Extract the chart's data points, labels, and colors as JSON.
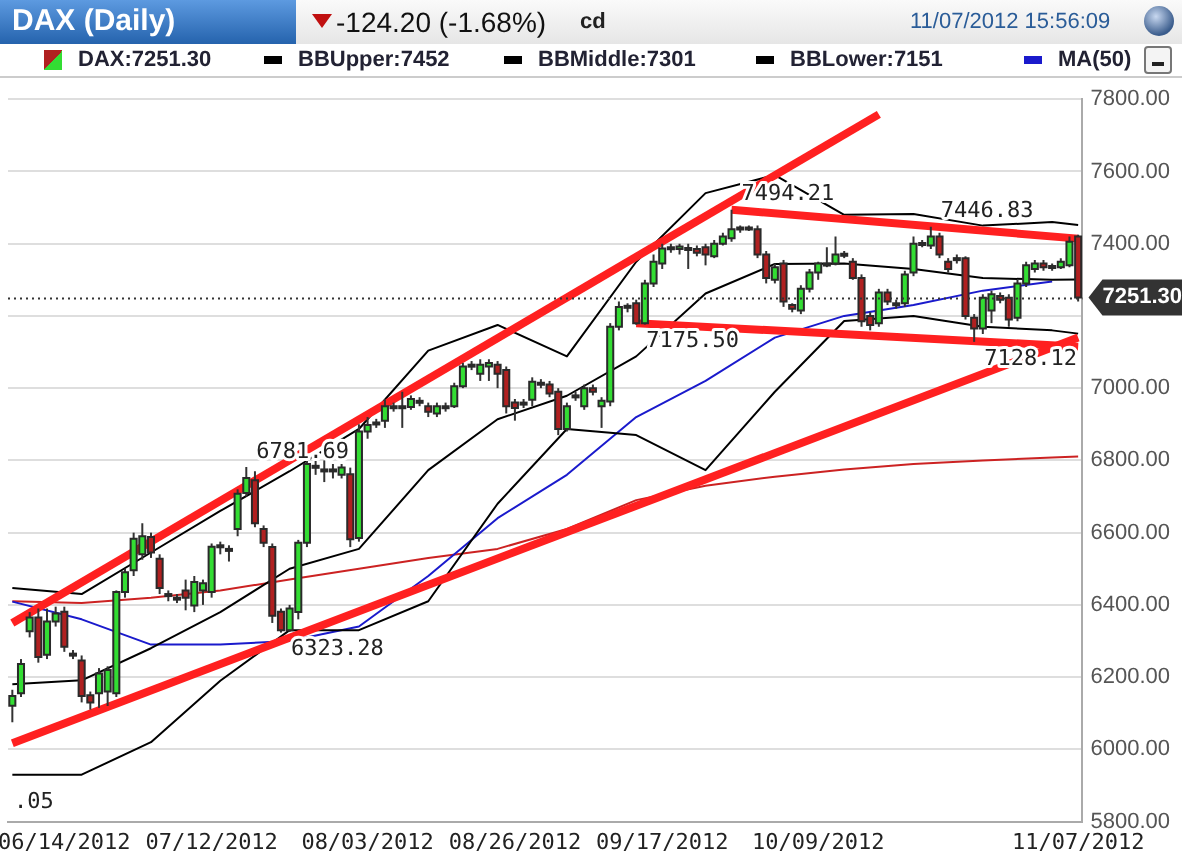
{
  "chart_data": {
    "type": "candlestick",
    "title": "DAX (Daily)",
    "subtitle": "-124.20 (-1.68%)",
    "annotations": [
      "cd",
      "11/07/2012 15:56:09",
      ".05",
      {
        "text": "7494.21",
        "y": 7494.21
      },
      {
        "text": "7446.83",
        "y": 7446.83
      },
      {
        "text": "7175.50",
        "y": 7175.5
      },
      {
        "text": "7128.12",
        "y": 7128.12
      },
      {
        "text": "6781.69",
        "y": 6781.69
      },
      {
        "text": "6323.28",
        "y": 6323.28
      }
    ],
    "categories": [
      null,
      null,
      null,
      null,
      null,
      null,
      "06/14/2012",
      null,
      null,
      null,
      null,
      null,
      null,
      null,
      null,
      null,
      null,
      null,
      null,
      null,
      null,
      null,
      null,
      "07/12/2012",
      null,
      null,
      null,
      null,
      null,
      null,
      null,
      null,
      null,
      null,
      null,
      null,
      null,
      null,
      null,
      null,
      null,
      "08/03/2012",
      null,
      null,
      null,
      null,
      null,
      null,
      null,
      null,
      null,
      null,
      null,
      null,
      null,
      null,
      null,
      null,
      "08/26/2012",
      null,
      null,
      null,
      null,
      null,
      null,
      null,
      null,
      null,
      null,
      null,
      null,
      null,
      null,
      null,
      null,
      "09/17/2012",
      null,
      null,
      null,
      null,
      null,
      null,
      null,
      null,
      null,
      null,
      null,
      null,
      null,
      null,
      null,
      null,
      null,
      "10/09/2012",
      null,
      null,
      null,
      null,
      null,
      null,
      null,
      null,
      null,
      null,
      null,
      null,
      null,
      null,
      null,
      null,
      null,
      null,
      null,
      null,
      null,
      null,
      null,
      null,
      null,
      null,
      null,
      null,
      null,
      "11/07/2012"
    ],
    "series": [
      {
        "name": "DAX:7251.30",
        "type": "candlestick",
        "ohlc": [
          [
            6121,
            6165,
            6075,
            6148
          ],
          [
            6155,
            6250,
            6145,
            6236
          ],
          [
            6327,
            6380,
            6310,
            6365
          ],
          [
            6365,
            6390,
            6240,
            6256
          ],
          [
            6262,
            6390,
            6250,
            6354
          ],
          [
            6354,
            6395,
            6340,
            6376
          ],
          [
            6381,
            6395,
            6270,
            6284
          ],
          [
            6265,
            6275,
            6250,
            6260
          ],
          [
            6246,
            6260,
            6130,
            6148
          ],
          [
            6150,
            6160,
            6110,
            6130
          ],
          [
            6155,
            6225,
            6115,
            6210
          ],
          [
            6160,
            6230,
            6120,
            6220
          ],
          [
            6155,
            6440,
            6145,
            6436
          ],
          [
            6436,
            6500,
            6420,
            6490
          ],
          [
            6496,
            6600,
            6480,
            6583
          ],
          [
            6540,
            6626,
            6525,
            6590
          ],
          [
            6588,
            6600,
            6530,
            6545
          ],
          [
            6528,
            6540,
            6430,
            6447
          ],
          [
            6430,
            6440,
            6410,
            6425
          ],
          [
            6415,
            6430,
            6405,
            6420
          ],
          [
            6440,
            6470,
            6385,
            6420
          ],
          [
            6398,
            6480,
            6380,
            6463
          ],
          [
            6440,
            6470,
            6400,
            6460
          ],
          [
            6436,
            6570,
            6420,
            6561
          ],
          [
            6565,
            6575,
            6540,
            6562
          ],
          [
            6555,
            6565,
            6520,
            6550
          ],
          [
            6610,
            6720,
            6590,
            6708
          ],
          [
            6710,
            6781.69,
            6700,
            6751
          ],
          [
            6745,
            6770,
            6615,
            6626
          ],
          [
            6610,
            6620,
            6560,
            6572
          ],
          [
            6560,
            6570,
            6350,
            6370
          ],
          [
            6381,
            6390,
            6323.28,
            6330
          ],
          [
            6330,
            6400,
            6325,
            6390
          ],
          [
            6380,
            6580,
            6360,
            6572
          ],
          [
            6572,
            6800,
            6560,
            6790
          ],
          [
            6785,
            6800,
            6760,
            6780
          ],
          [
            6770,
            6800,
            6740,
            6775
          ],
          [
            6775,
            6790,
            6750,
            6770
          ],
          [
            6760,
            6790,
            6750,
            6780
          ],
          [
            6762,
            6780,
            6560,
            6582
          ],
          [
            6585,
            6900,
            6575,
            6880
          ],
          [
            6880,
            6920,
            6860,
            6898
          ],
          [
            6900,
            6915,
            6890,
            6905
          ],
          [
            6910,
            6970,
            6890,
            6950
          ],
          [
            6950,
            6960,
            6935,
            6948
          ],
          [
            6945,
            6990,
            6890,
            6950
          ],
          [
            6948,
            6980,
            6940,
            6970
          ],
          [
            6965,
            6975,
            6950,
            6960
          ],
          [
            6950,
            6960,
            6920,
            6935
          ],
          [
            6930,
            6960,
            6920,
            6950
          ],
          [
            6950,
            6960,
            6935,
            6945
          ],
          [
            6950,
            7015,
            6945,
            7005
          ],
          [
            7005,
            7070,
            7000,
            7060
          ],
          [
            7060,
            7075,
            7050,
            7065
          ],
          [
            7040,
            7080,
            7020,
            7065
          ],
          [
            7060,
            7080,
            7020,
            7070
          ],
          [
            7065,
            7075,
            7000,
            7040
          ],
          [
            7050,
            7060,
            6930,
            6950
          ],
          [
            6960,
            6970,
            6910,
            6945
          ],
          [
            6955,
            6970,
            6945,
            6960
          ],
          [
            6968,
            7030,
            6950,
            7018
          ],
          [
            7015,
            7025,
            7000,
            7010
          ],
          [
            7010,
            7020,
            6975,
            6985
          ],
          [
            6990,
            7000,
            6870,
            6887
          ],
          [
            6887,
            6960,
            6880,
            6950
          ],
          [
            6975,
            6990,
            6965,
            6980
          ],
          [
            6950,
            7010,
            6940,
            7000
          ],
          [
            7000,
            7010,
            6980,
            6990
          ],
          [
            6950,
            6975,
            6890,
            6965
          ],
          [
            6963,
            7180,
            6950,
            7170
          ],
          [
            7170,
            7240,
            7160,
            7225
          ],
          [
            7225,
            7235,
            7210,
            7228
          ],
          [
            7235,
            7245,
            7175.5,
            7180
          ],
          [
            7180,
            7300,
            7176,
            7290
          ],
          [
            7290,
            7370,
            7280,
            7350
          ],
          [
            7345,
            7400,
            7330,
            7387
          ],
          [
            7390,
            7400,
            7375,
            7385
          ],
          [
            7385,
            7400,
            7370,
            7392
          ],
          [
            7388,
            7400,
            7330,
            7385
          ],
          [
            7385,
            7395,
            7365,
            7375
          ],
          [
            7390,
            7400,
            7340,
            7370
          ],
          [
            7365,
            7410,
            7360,
            7400
          ],
          [
            7400,
            7430,
            7395,
            7420
          ],
          [
            7415,
            7494.21,
            7405,
            7440
          ],
          [
            7440,
            7450,
            7430,
            7445
          ],
          [
            7445,
            7450,
            7435,
            7443
          ],
          [
            7440,
            7450,
            7360,
            7370
          ],
          [
            7370,
            7380,
            7290,
            7305
          ],
          [
            7300,
            7345,
            7290,
            7335
          ],
          [
            7345,
            7355,
            7225,
            7240
          ],
          [
            7230,
            7235,
            7210,
            7220
          ],
          [
            7215,
            7285,
            7205,
            7275
          ],
          [
            7275,
            7330,
            7265,
            7320
          ],
          [
            7320,
            7350,
            7300,
            7345
          ],
          [
            7345,
            7390,
            7335,
            7342
          ],
          [
            7345,
            7420,
            7340,
            7370
          ],
          [
            7370,
            7380,
            7360,
            7372
          ],
          [
            7350,
            7360,
            7300,
            7305
          ],
          [
            7305,
            7315,
            7170,
            7185
          ],
          [
            7200,
            7210,
            7160,
            7175
          ],
          [
            7180,
            7275,
            7170,
            7265
          ],
          [
            7265,
            7275,
            7230,
            7240
          ],
          [
            7235,
            7245,
            7220,
            7230
          ],
          [
            7235,
            7325,
            7225,
            7315
          ],
          [
            7320,
            7420,
            7310,
            7400
          ],
          [
            7400,
            7410,
            7390,
            7402
          ],
          [
            7395,
            7446.83,
            7385,
            7420
          ],
          [
            7420,
            7430,
            7360,
            7370
          ],
          [
            7350,
            7360,
            7320,
            7330
          ],
          [
            7355,
            7370,
            7345,
            7360
          ],
          [
            7360,
            7365,
            7190,
            7200
          ],
          [
            7195,
            7205,
            7128.12,
            7165
          ],
          [
            7165,
            7260,
            7150,
            7250
          ],
          [
            7215,
            7270,
            7180,
            7260
          ],
          [
            7255,
            7265,
            7235,
            7245
          ],
          [
            7250,
            7260,
            7170,
            7190
          ],
          [
            7195,
            7300,
            7185,
            7290
          ],
          [
            7290,
            7350,
            7280,
            7340
          ],
          [
            7330,
            7355,
            7320,
            7345
          ],
          [
            7345,
            7355,
            7325,
            7335
          ],
          [
            7335,
            7345,
            7325,
            7338
          ],
          [
            7335,
            7360,
            7330,
            7350
          ],
          [
            7340,
            7420,
            7335,
            7405
          ],
          [
            7420,
            7425,
            7240,
            7251.3
          ]
        ],
        "colors": [
          "#33dd33",
          "#33dd33",
          "#33dd33",
          "#b02020",
          "#33dd33",
          "#33dd33",
          "#b02020",
          "#b02020",
          "#b02020",
          "#b02020",
          "#33dd33",
          "#33dd33",
          "#33dd33",
          "#33dd33",
          "#33dd33",
          "#33dd33",
          "#b02020",
          "#b02020",
          "#b02020",
          "#33dd33",
          "#b02020",
          "#33dd33",
          "#33dd33",
          "#33dd33",
          "#b02020",
          "#b02020",
          "#33dd33",
          "#33dd33",
          "#b02020",
          "#b02020",
          "#b02020",
          "#b02020",
          "#33dd33",
          "#33dd33",
          "#33dd33",
          "#b02020",
          "#33dd33",
          "#b02020",
          "#33dd33",
          "#b02020",
          "#33dd33",
          "#33dd33",
          "#33dd33",
          "#33dd33",
          "#b02020",
          "#33dd33",
          "#33dd33",
          "#b02020",
          "#b02020",
          "#33dd33",
          "#b02020",
          "#33dd33",
          "#33dd33",
          "#33dd33",
          "#33dd33",
          "#33dd33",
          "#b02020",
          "#b02020",
          "#b02020",
          "#33dd33",
          "#33dd33",
          "#b02020",
          "#b02020",
          "#b02020",
          "#33dd33",
          "#33dd33",
          "#33dd33",
          "#b02020",
          "#33dd33",
          "#33dd33",
          "#33dd33",
          "#33dd33",
          "#b02020",
          "#33dd33",
          "#33dd33",
          "#33dd33",
          "#b02020",
          "#33dd33",
          "#b02020",
          "#b02020",
          "#b02020",
          "#33dd33",
          "#33dd33",
          "#33dd33",
          "#33dd33",
          "#b02020",
          "#b02020",
          "#b02020",
          "#33dd33",
          "#b02020",
          "#b02020",
          "#33dd33",
          "#33dd33",
          "#33dd33",
          "#b02020",
          "#33dd33",
          "#33dd33",
          "#b02020",
          "#b02020",
          "#b02020",
          "#33dd33",
          "#b02020",
          "#b02020",
          "#33dd33",
          "#33dd33",
          "#33dd33",
          "#33dd33",
          "#b02020",
          "#b02020",
          "#33dd33",
          "#b02020",
          "#b02020",
          "#33dd33",
          "#33dd33",
          "#b02020",
          "#b02020",
          "#33dd33",
          "#33dd33",
          "#33dd33",
          "#b02020",
          "#33dd33",
          "#33dd33",
          "#33dd33",
          "#b02020"
        ]
      },
      {
        "name": "BBUpper:7452",
        "type": "line",
        "color": "#000000",
        "values": [
          6447,
          null,
          null,
          null,
          null,
          null,
          null,
          null,
          6430,
          null,
          null,
          null,
          null,
          null,
          null,
          null,
          6545,
          null,
          null,
          null,
          null,
          null,
          null,
          null,
          6660,
          null,
          null,
          null,
          null,
          null,
          null,
          null,
          6770,
          null,
          null,
          null,
          null,
          null,
          null,
          null,
          6887,
          null,
          null,
          null,
          null,
          null,
          null,
          null,
          7104,
          null,
          null,
          null,
          null,
          null,
          null,
          null,
          7175,
          null,
          null,
          null,
          null,
          null,
          null,
          null,
          7088,
          null,
          null,
          null,
          null,
          null,
          null,
          null,
          7350,
          null,
          null,
          null,
          null,
          null,
          null,
          null,
          7540,
          null,
          null,
          null,
          null,
          null,
          null,
          null,
          7590,
          null,
          null,
          null,
          null,
          null,
          null,
          null,
          7480,
          null,
          null,
          null,
          null,
          null,
          null,
          null,
          7482,
          null,
          null,
          null,
          null,
          null,
          null,
          null,
          7450,
          null,
          null,
          null,
          null,
          null,
          null,
          null,
          7460,
          null,
          null,
          7452
        ]
      },
      {
        "name": "BBMiddle:7301",
        "type": "line",
        "color": "#000000",
        "values": [
          6180,
          null,
          null,
          null,
          null,
          null,
          null,
          null,
          6191,
          null,
          null,
          null,
          null,
          null,
          null,
          null,
          6280,
          null,
          null,
          null,
          null,
          null,
          null,
          null,
          6380,
          null,
          null,
          null,
          null,
          null,
          null,
          null,
          6500,
          null,
          null,
          null,
          null,
          null,
          null,
          null,
          6555,
          null,
          null,
          null,
          null,
          null,
          null,
          null,
          6773,
          null,
          null,
          null,
          null,
          null,
          null,
          null,
          6914,
          null,
          null,
          null,
          null,
          null,
          null,
          null,
          6979,
          null,
          null,
          null,
          null,
          null,
          null,
          null,
          7088,
          null,
          null,
          null,
          null,
          null,
          null,
          null,
          7262,
          null,
          null,
          null,
          null,
          null,
          null,
          null,
          7344,
          null,
          null,
          null,
          null,
          null,
          null,
          null,
          7345,
          null,
          null,
          null,
          null,
          null,
          null,
          null,
          7330,
          null,
          null,
          null,
          null,
          null,
          null,
          null,
          7305,
          null,
          null,
          null,
          null,
          null,
          null,
          null,
          7300,
          null,
          null,
          7301
        ]
      },
      {
        "name": "BBLower:7151",
        "type": "line",
        "color": "#000000",
        "values": [
          5930,
          null,
          null,
          null,
          null,
          null,
          null,
          null,
          5930,
          null,
          null,
          null,
          null,
          null,
          null,
          null,
          6020,
          null,
          null,
          null,
          null,
          null,
          null,
          null,
          6190,
          null,
          null,
          null,
          null,
          null,
          null,
          null,
          6330,
          null,
          null,
          null,
          null,
          null,
          null,
          null,
          6330,
          null,
          null,
          null,
          null,
          null,
          null,
          null,
          6410,
          null,
          null,
          null,
          null,
          null,
          null,
          null,
          6680,
          null,
          null,
          null,
          null,
          null,
          null,
          null,
          6887,
          null,
          null,
          null,
          null,
          null,
          null,
          null,
          6870,
          null,
          null,
          null,
          null,
          null,
          null,
          null,
          6773,
          null,
          null,
          null,
          null,
          null,
          null,
          null,
          6990,
          null,
          null,
          null,
          null,
          null,
          null,
          null,
          7186,
          null,
          null,
          null,
          null,
          null,
          null,
          null,
          7200,
          null,
          null,
          null,
          null,
          null,
          null,
          null,
          7170,
          null,
          null,
          null,
          null,
          null,
          null,
          null,
          7160,
          null,
          null,
          7151
        ]
      },
      {
        "name": "MA(50)",
        "type": "line",
        "color": "#1a1acc",
        "values": [
          6409,
          null,
          null,
          null,
          null,
          null,
          null,
          null,
          6360,
          null,
          null,
          null,
          null,
          null,
          null,
          null,
          6290,
          null,
          null,
          null,
          null,
          null,
          null,
          null,
          6290,
          null,
          null,
          null,
          null,
          null,
          null,
          null,
          6300,
          null,
          null,
          null,
          null,
          null,
          null,
          null,
          6340,
          null,
          null,
          null,
          null,
          null,
          null,
          null,
          6480,
          null,
          null,
          null,
          null,
          null,
          null,
          null,
          6640,
          null,
          null,
          null,
          null,
          null,
          null,
          null,
          6760,
          null,
          null,
          null,
          null,
          null,
          null,
          null,
          6920,
          null,
          null,
          null,
          null,
          null,
          null,
          null,
          7020,
          null,
          null,
          null,
          null,
          null,
          null,
          null,
          7140,
          null,
          null,
          null,
          null,
          null,
          null,
          null,
          7200,
          null,
          null,
          null,
          null,
          null,
          null,
          null,
          7230,
          null,
          null,
          null,
          null,
          null,
          null,
          null,
          7270,
          null,
          null,
          null,
          null,
          null,
          null,
          null,
          7295,
          null,
          null,
          null
        ]
      },
      {
        "type": "line",
        "color": "#cc2222",
        "values": [
          6410,
          null,
          null,
          null,
          null,
          null,
          null,
          null,
          6405,
          null,
          null,
          null,
          null,
          null,
          null,
          null,
          6420,
          null,
          null,
          null,
          null,
          null,
          null,
          null,
          6440,
          null,
          null,
          null,
          null,
          null,
          null,
          null,
          6470,
          null,
          null,
          null,
          null,
          null,
          null,
          null,
          6500,
          null,
          null,
          null,
          null,
          null,
          null,
          null,
          6530,
          null,
          null,
          null,
          null,
          null,
          null,
          null,
          6555,
          null,
          null,
          null,
          null,
          null,
          null,
          null,
          6610,
          null,
          null,
          null,
          null,
          null,
          null,
          null,
          6690,
          null,
          null,
          null,
          null,
          null,
          null,
          null,
          6730,
          null,
          null,
          null,
          null,
          null,
          null,
          null,
          6755,
          null,
          null,
          null,
          null,
          null,
          null,
          null,
          6775,
          null,
          null,
          null,
          null,
          null,
          null,
          null,
          6790,
          null,
          null,
          null,
          null,
          null,
          null,
          null,
          6800,
          null,
          null,
          null,
          null,
          null,
          null,
          null,
          6808,
          null,
          null,
          6811
        ]
      },
      {
        "type": "line",
        "color": "#ff2020",
        "values": [
          6350,
          null,
          null,
          null,
          null,
          null,
          null,
          null,
          null,
          null,
          null,
          null,
          null,
          null,
          null,
          null,
          null,
          null,
          null,
          null,
          null,
          null,
          null,
          null,
          null,
          null,
          null,
          null,
          null,
          null,
          null,
          null,
          null,
          null,
          null,
          null,
          null,
          null,
          null,
          null,
          null,
          null,
          null,
          null,
          null,
          null,
          null,
          null,
          null,
          null,
          null,
          null,
          null,
          null,
          null,
          null,
          null,
          null,
          null,
          null,
          null,
          null,
          null,
          null,
          null,
          null,
          null,
          null,
          null,
          null,
          null,
          null,
          null,
          null,
          null,
          null,
          null,
          null,
          null,
          null,
          null,
          null,
          null,
          null,
          null,
          null,
          null,
          null,
          null,
          null,
          null,
          null,
          null,
          null,
          null,
          null,
          null,
          null,
          null,
          null,
          7758,
          null,
          null,
          null,
          null,
          null,
          null,
          null,
          null,
          null,
          null,
          null,
          null,
          null,
          null,
          null,
          null,
          null,
          null,
          null,
          null,
          null,
          null,
          null
        ]
      },
      {
        "type": "line",
        "color": "#ff2020",
        "values": [
          6017,
          null,
          null,
          null,
          null,
          null,
          null,
          null,
          null,
          null,
          null,
          null,
          null,
          null,
          null,
          null,
          null,
          null,
          null,
          null,
          null,
          null,
          null,
          null,
          null,
          null,
          null,
          null,
          null,
          null,
          null,
          null,
          null,
          null,
          null,
          null,
          null,
          null,
          null,
          null,
          null,
          null,
          null,
          null,
          null,
          null,
          null,
          null,
          null,
          null,
          null,
          null,
          null,
          null,
          null,
          null,
          null,
          null,
          null,
          null,
          null,
          null,
          null,
          null,
          null,
          null,
          null,
          null,
          null,
          null,
          null,
          null,
          null,
          null,
          null,
          null,
          null,
          null,
          null,
          null,
          null,
          null,
          null,
          null,
          null,
          null,
          null,
          null,
          null,
          null,
          null,
          null,
          null,
          null,
          null,
          null,
          null,
          null,
          null,
          null,
          null,
          null,
          null,
          null,
          null,
          null,
          null,
          null,
          null,
          null,
          null,
          null,
          null,
          null,
          null,
          null,
          null,
          null,
          null,
          null,
          null,
          null,
          null,
          7140
        ]
      },
      {
        "type": "line",
        "color": "#ff2020",
        "values": [
          null,
          null,
          null,
          null,
          null,
          null,
          null,
          null,
          null,
          null,
          null,
          null,
          null,
          null,
          null,
          null,
          null,
          null,
          null,
          null,
          null,
          null,
          null,
          null,
          null,
          null,
          null,
          null,
          null,
          null,
          null,
          null,
          null,
          null,
          null,
          null,
          null,
          null,
          null,
          null,
          null,
          null,
          null,
          null,
          null,
          null,
          null,
          null,
          null,
          null,
          null,
          null,
          null,
          null,
          null,
          null,
          null,
          null,
          null,
          null,
          null,
          null,
          null,
          null,
          null,
          null,
          null,
          null,
          null,
          null,
          null,
          null,
          null,
          null,
          null,
          null,
          null,
          null,
          null,
          null,
          null,
          null,
          null,
          7494,
          null,
          null,
          null,
          null,
          null,
          null,
          null,
          null,
          null,
          null,
          null,
          null,
          null,
          null,
          null,
          null,
          null,
          null,
          null,
          null,
          null,
          null,
          null,
          null,
          null,
          null,
          null,
          null,
          null,
          null,
          null,
          null,
          null,
          null,
          null,
          null,
          null,
          null,
          null,
          7414
        ]
      },
      {
        "type": "line",
        "color": "#ff2020",
        "values": [
          null,
          null,
          null,
          null,
          null,
          null,
          null,
          null,
          null,
          null,
          null,
          null,
          null,
          null,
          null,
          null,
          null,
          null,
          null,
          null,
          null,
          null,
          null,
          null,
          null,
          null,
          null,
          null,
          null,
          null,
          null,
          null,
          null,
          null,
          null,
          null,
          null,
          null,
          null,
          null,
          null,
          null,
          null,
          null,
          null,
          null,
          null,
          null,
          null,
          null,
          null,
          null,
          null,
          null,
          null,
          null,
          null,
          null,
          null,
          null,
          null,
          null,
          null,
          null,
          null,
          null,
          null,
          null,
          null,
          null,
          null,
          null,
          7180,
          null,
          null,
          null,
          null,
          null,
          null,
          null,
          null,
          null,
          null,
          null,
          null,
          null,
          null,
          null,
          null,
          null,
          null,
          null,
          null,
          null,
          null,
          null,
          null,
          null,
          null,
          null,
          null,
          null,
          null,
          null,
          null,
          null,
          null,
          null,
          null,
          null,
          null,
          null,
          null,
          null,
          null,
          null,
          null,
          null,
          null,
          null,
          null,
          null,
          null,
          7115
        ]
      }
    ],
    "ylim": [
      5800,
      7800
    ],
    "yticks": [
      {
        "value": 5800,
        "label": "5800.00"
      },
      {
        "value": 6000,
        "label": "6000.00"
      },
      {
        "value": 6200,
        "label": "6200.00"
      },
      {
        "value": 6400,
        "label": "6400.00"
      },
      {
        "value": 6600,
        "label": "6600.00"
      },
      {
        "value": 6800,
        "label": "6800.00"
      },
      {
        "value": 7000,
        "label": "7000.00"
      },
      {
        "value": 7200,
        "label": null
      },
      {
        "value": 7400,
        "label": "7400.00"
      },
      {
        "value": 7600,
        "label": "7600.00"
      },
      {
        "value": 7800,
        "label": "7800.00"
      }
    ],
    "ref_lines": [
      {
        "axis": "y",
        "value": 7251.3,
        "label": "7251.30",
        "color": "#333333",
        "line_style": "dotted"
      }
    ],
    "grid": "y",
    "legend": "top"
  }
}
